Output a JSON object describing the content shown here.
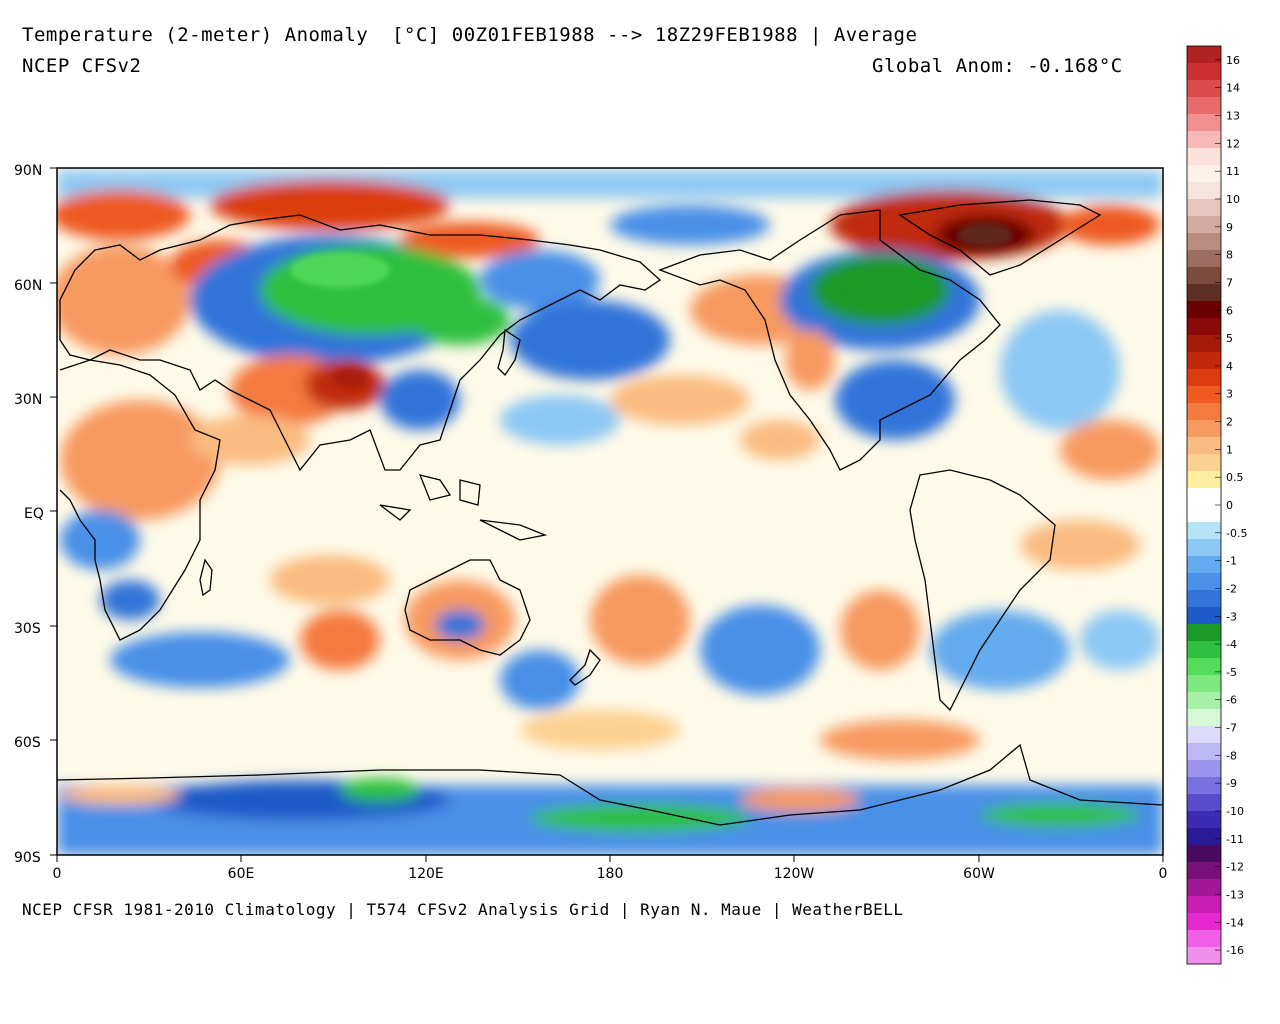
{
  "header": {
    "title": "Temperature (2-meter) Anomaly  [°C] 00Z01FEB1988 --> 18Z29FEB1988 | Average",
    "model": "NCEP CFSv2",
    "global_anom": "Global Anom: -0.168°C"
  },
  "footer": "NCEP CFSR 1981-2010 Climatology | T574 CFSv2 Analysis Grid | Ryan N. Maue | WeatherBELL",
  "map": {
    "lat_labels": [
      "90N",
      "60N",
      "30N",
      "EQ",
      "30S",
      "60S",
      "90S"
    ],
    "lon_labels": [
      "0",
      "60E",
      "120E",
      "180",
      "120W",
      "60W",
      "0"
    ]
  },
  "colorbar": {
    "colors": [
      "#b22222",
      "#cd3030",
      "#dd4c4c",
      "#e86a6a",
      "#f09090",
      "#f8b8b8",
      "#fde2dc",
      "#fef0ea",
      "#f5e3dc",
      "#e6c6bc",
      "#d2aba0",
      "#b98c80",
      "#9e6c60",
      "#7d4a3e",
      "#5e2e24",
      "#6a0000",
      "#8b0a0a",
      "#a61a0a",
      "#c02a0a",
      "#dc3c10",
      "#ee5a20",
      "#f47a40",
      "#f79a60",
      "#fabb80",
      "#fcd090",
      "#fdeea0",
      "#ffffff",
      "#ffffff",
      "#b4e4f6",
      "#8cc8f4",
      "#64aaee",
      "#4a90e8",
      "#3374da",
      "#1e5ac8",
      "#1a9a28",
      "#2ec03e",
      "#52dc5a",
      "#7ee880",
      "#a8f0a8",
      "#d6f8d6",
      "#dcdcfa",
      "#bcb8f4",
      "#9c94ec",
      "#7a70e0",
      "#5a4ccc",
      "#3c2cb4",
      "#2a1a96",
      "#4a0a60",
      "#78107a",
      "#a01898",
      "#c81eb4",
      "#e628d0",
      "#f060e6",
      "#f090ec"
    ],
    "labels": [
      {
        "text": "16",
        "index": 1
      },
      {
        "text": "14",
        "index": 3
      },
      {
        "text": "13",
        "index": 5
      },
      {
        "text": "12",
        "index": 7
      },
      {
        "text": "11",
        "index": 9
      },
      {
        "text": "10",
        "index": 11
      },
      {
        "text": "9",
        "index": 13
      },
      {
        "text": "8",
        "index": 15
      },
      {
        "text": "7",
        "index": 17
      },
      {
        "text": "6",
        "index": 19
      },
      {
        "text": "5",
        "index": 21
      },
      {
        "text": "4",
        "index": 23
      },
      {
        "text": "3",
        "index": 25
      },
      {
        "text": "2",
        "index": 27
      },
      {
        "text": "1",
        "index": 29
      },
      {
        "text": "0.5",
        "index": 31
      },
      {
        "text": "0",
        "index": 33
      },
      {
        "text": "-0.5",
        "index": 35
      },
      {
        "text": "-1",
        "index": 37
      },
      {
        "text": "-2",
        "index": 39
      },
      {
        "text": "-3",
        "index": 41
      },
      {
        "text": "-4",
        "index": 43
      },
      {
        "text": "-5",
        "index": 45
      },
      {
        "text": "-6",
        "index": 47
      },
      {
        "text": "-7",
        "index": 49
      },
      {
        "text": "-8",
        "index": 51
      },
      {
        "text": "-9",
        "index": 53
      },
      {
        "text": "-10",
        "index": 55
      },
      {
        "text": "-11",
        "index": 57
      },
      {
        "text": "-12",
        "index": 59
      },
      {
        "text": "-13",
        "index": 61
      },
      {
        "text": "-14",
        "index": 63
      },
      {
        "text": "-16",
        "index": 65
      }
    ]
  }
}
